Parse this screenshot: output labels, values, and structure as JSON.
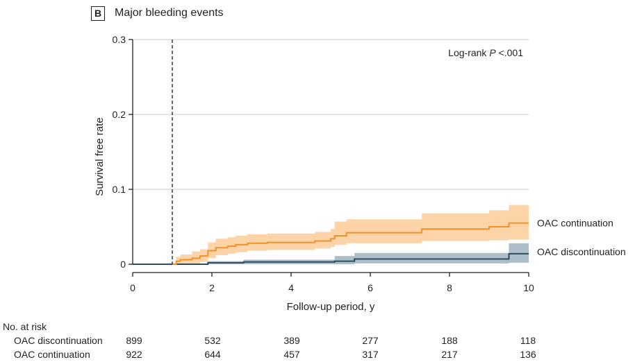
{
  "panel": {
    "letter": "B",
    "title": "Major bleeding events"
  },
  "chart_data": {
    "type": "line",
    "title": "Major bleeding events",
    "xlabel": "Follow-up period, y",
    "ylabel": "Survival free rate",
    "xlim": [
      0,
      10
    ],
    "ylim": [
      0,
      0.3
    ],
    "xticks": [
      0,
      2,
      4,
      6,
      8,
      10
    ],
    "xtick_labels": [
      "0",
      "2",
      "4",
      "6",
      "8",
      "10"
    ],
    "yticks": [
      0,
      0.1,
      0.2,
      0.3
    ],
    "ytick_labels": [
      "0",
      "0.1",
      "0.2",
      "0.3"
    ],
    "grid": "horizontal",
    "landmark_x": 1,
    "annotation": {
      "prefix": "Log-rank ",
      "p": "P",
      "suffix": " <.001"
    },
    "series": [
      {
        "name": "OAC continuation",
        "color": "#f0922b",
        "band_color": "#fdd3a8",
        "x": [
          1.0,
          1.1,
          1.2,
          1.5,
          1.7,
          1.9,
          2.1,
          2.4,
          2.6,
          2.9,
          3.4,
          4.6,
          5.0,
          5.1,
          5.4,
          7.3,
          9.0,
          9.5,
          10.0
        ],
        "y": [
          0.0,
          0.004,
          0.006,
          0.008,
          0.011,
          0.018,
          0.022,
          0.024,
          0.026,
          0.028,
          0.029,
          0.031,
          0.034,
          0.038,
          0.042,
          0.047,
          0.05,
          0.055,
          0.055
        ],
        "lower": [
          0.0,
          0.0,
          0.0,
          0.001,
          0.003,
          0.008,
          0.012,
          0.014,
          0.016,
          0.018,
          0.019,
          0.021,
          0.023,
          0.026,
          0.028,
          0.031,
          0.032,
          0.033,
          0.033
        ],
        "upper": [
          0.0,
          0.01,
          0.013,
          0.017,
          0.02,
          0.029,
          0.034,
          0.036,
          0.038,
          0.04,
          0.041,
          0.043,
          0.047,
          0.057,
          0.06,
          0.068,
          0.072,
          0.079,
          0.079
        ]
      },
      {
        "name": "OAC discontinuation",
        "color": "#2e4d5c",
        "band_color": "#a5b7c2",
        "x": [
          0.0,
          1.9,
          2.8,
          5.1,
          5.6,
          9.5,
          10.0
        ],
        "y": [
          0.0,
          0.002,
          0.003,
          0.004,
          0.007,
          0.014,
          0.014
        ],
        "lower": [
          0.0,
          0.0,
          0.0,
          0.0,
          0.001,
          0.002,
          0.002
        ],
        "upper": [
          0.0,
          0.004,
          0.006,
          0.011,
          0.015,
          0.028,
          0.028
        ]
      }
    ]
  },
  "risk_table": {
    "title": "No. at risk",
    "rows": [
      {
        "label": "OAC discontinuation",
        "values": [
          "899",
          "532",
          "389",
          "277",
          "188",
          "118"
        ]
      },
      {
        "label": "OAC continuation",
        "values": [
          "922",
          "644",
          "457",
          "317",
          "217",
          "136"
        ]
      }
    ]
  }
}
